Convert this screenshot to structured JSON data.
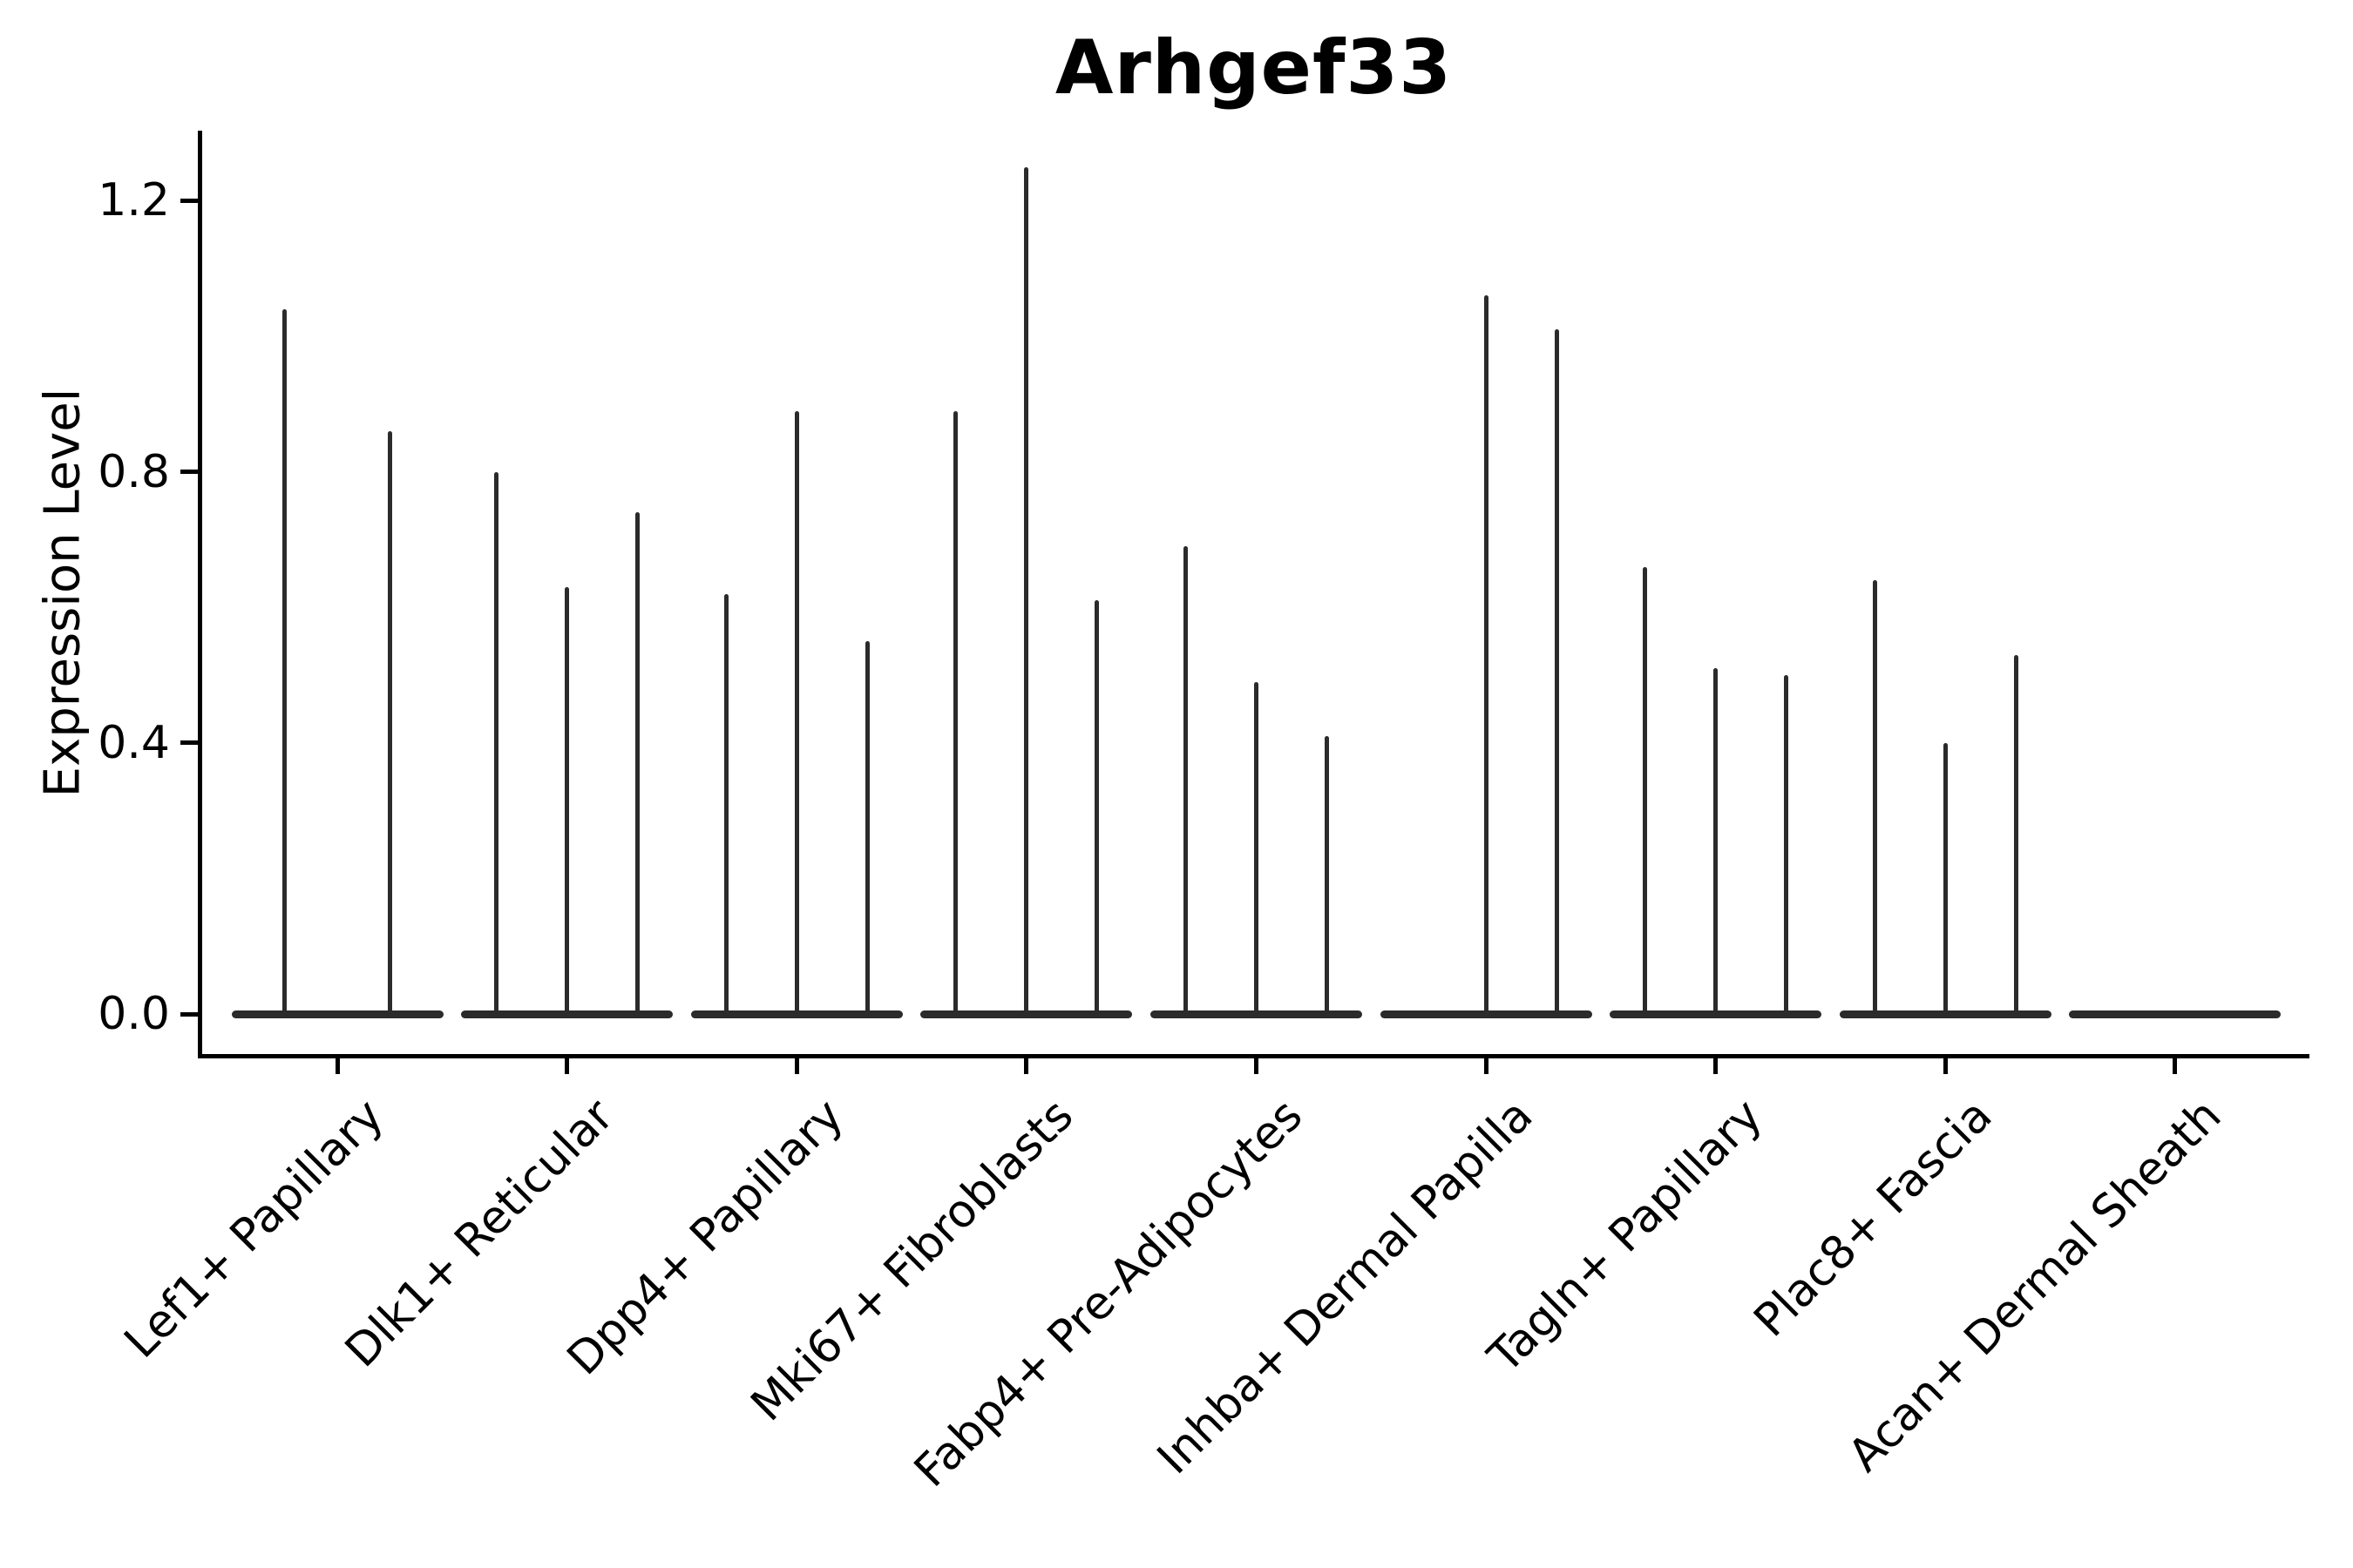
{
  "title": "Arhgef33",
  "ylabel": "Expression Level",
  "colors": {
    "ink": "#2b2b2b",
    "axis": "#000000",
    "background": "#ffffff"
  },
  "chart_data": {
    "type": "violin",
    "title": "Arhgef33",
    "xlabel": "",
    "ylabel": "Expression Level",
    "ytick_labels": [
      "0.0",
      "0.4",
      "0.8",
      "1.2"
    ],
    "ytick_values": [
      0.0,
      0.4,
      0.8,
      1.2
    ],
    "ylim": [
      -0.06,
      1.31
    ],
    "grid": false,
    "legend": "none",
    "note": "Each category shows thin spike-shaped violins (max expression per violin); 0 = flat violin with no expressing cells",
    "categories": [
      "Lef1+ Papillary",
      "Dlk1+ Reticular",
      "Dpp4+ Papillary",
      "Mki67+ Fibroblasts",
      "Fabp4+ Pre-Adipocytes",
      "Inhba+ Dermal Papilla",
      "Tagln+ Papillary",
      "Plac8+ Fascia",
      "Acan+ Dermal Sheath"
    ],
    "groups": [
      {
        "label": "Lef1+ Papillary",
        "violin_max_values": [
          1.04,
          0.86
        ]
      },
      {
        "label": "Dlk1+ Reticular",
        "violin_max_values": [
          0.8,
          0.63,
          0.74
        ]
      },
      {
        "label": "Dpp4+ Papillary",
        "violin_max_values": [
          0.62,
          0.89,
          0.55
        ]
      },
      {
        "label": "Mki67+ Fibroblasts",
        "violin_max_values": [
          0.89,
          1.25,
          0.61
        ]
      },
      {
        "label": "Fabp4+ Pre-Adipocytes",
        "violin_max_values": [
          0.69,
          0.49,
          0.41
        ]
      },
      {
        "label": "Inhba+ Dermal Papilla",
        "violin_max_values": [
          0.0,
          1.06,
          1.01
        ]
      },
      {
        "label": "Tagln+ Papillary",
        "violin_max_values": [
          0.66,
          0.51,
          0.5
        ]
      },
      {
        "label": "Plac8+ Fascia",
        "violin_max_values": [
          0.64,
          0.4,
          0.53
        ]
      },
      {
        "label": "Acan+ Dermal Sheath",
        "violin_max_values": [
          0.0,
          0.0,
          0.0
        ]
      }
    ]
  }
}
